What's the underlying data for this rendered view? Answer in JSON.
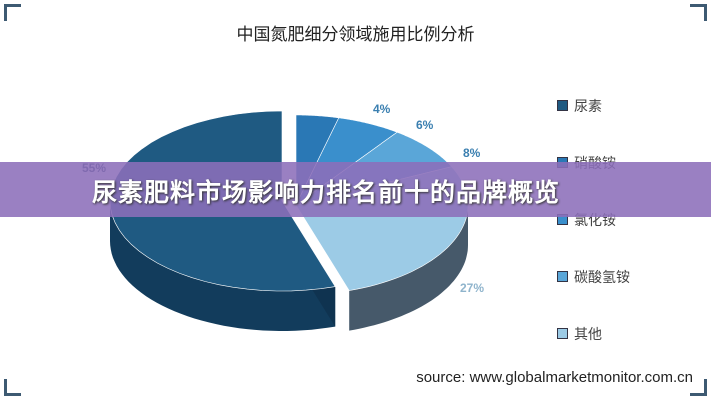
{
  "chart_data": {
    "type": "pie",
    "title": "中国氮肥细分领域施用比例分析",
    "categories": [
      "尿素",
      "硝酸铵",
      "氯化铵",
      "碳酸氢铵",
      "其他"
    ],
    "values": [
      55,
      4,
      6,
      8,
      27
    ],
    "labels": [
      "55%",
      "4%",
      "6%",
      "8%",
      "27%"
    ],
    "colors": [
      "#1f5a82",
      "#2a78b5",
      "#3a8fcc",
      "#5aa6d8",
      "#9ccbe6"
    ],
    "legend_position": "right",
    "style": "3d-exploded"
  },
  "banner": {
    "text": "尿素肥料市场影响力排名前十的品牌概览"
  },
  "source": "source: www.globalmarketmonitor.com.cn"
}
